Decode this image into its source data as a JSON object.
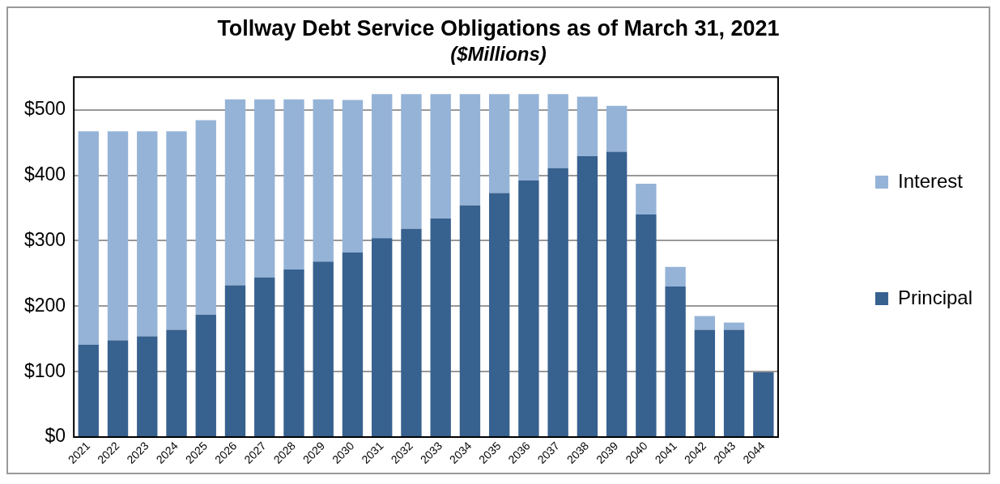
{
  "chart_data": {
    "type": "bar",
    "title": "Tollway Debt Service Obligations as of March 31, 2021",
    "subtitle": "($Millions)",
    "categories": [
      "2021",
      "2022",
      "2023",
      "2024",
      "2025",
      "2026",
      "2027",
      "2028",
      "2029",
      "2030",
      "2031",
      "2032",
      "2033",
      "2034",
      "2035",
      "2036",
      "2037",
      "2038",
      "2039",
      "2040",
      "2041",
      "2042",
      "2043",
      "2044"
    ],
    "stacked": true,
    "series": [
      {
        "name": "Principal",
        "color": "#37618f",
        "values": [
          141,
          148,
          154,
          164,
          187,
          232,
          244,
          256,
          268,
          282,
          304,
          318,
          334,
          354,
          373,
          392,
          411,
          429,
          436,
          340,
          230,
          164,
          164,
          99
        ]
      },
      {
        "name": "Interest",
        "color": "#95b3d7",
        "values": [
          326,
          319,
          313,
          303,
          297,
          284,
          272,
          260,
          248,
          233,
          220,
          206,
          190,
          170,
          151,
          132,
          113,
          91,
          70,
          47,
          30,
          21,
          11,
          0
        ]
      }
    ],
    "ylim": [
      0,
      550
    ],
    "yticks": [
      {
        "value": 0,
        "label": "$0"
      },
      {
        "value": 100,
        "label": "$100"
      },
      {
        "value": 200,
        "label": "$200"
      },
      {
        "value": 300,
        "label": "$300"
      },
      {
        "value": 400,
        "label": "$400"
      },
      {
        "value": 500,
        "label": "$500"
      }
    ],
    "grid": "y",
    "legend": "right"
  }
}
